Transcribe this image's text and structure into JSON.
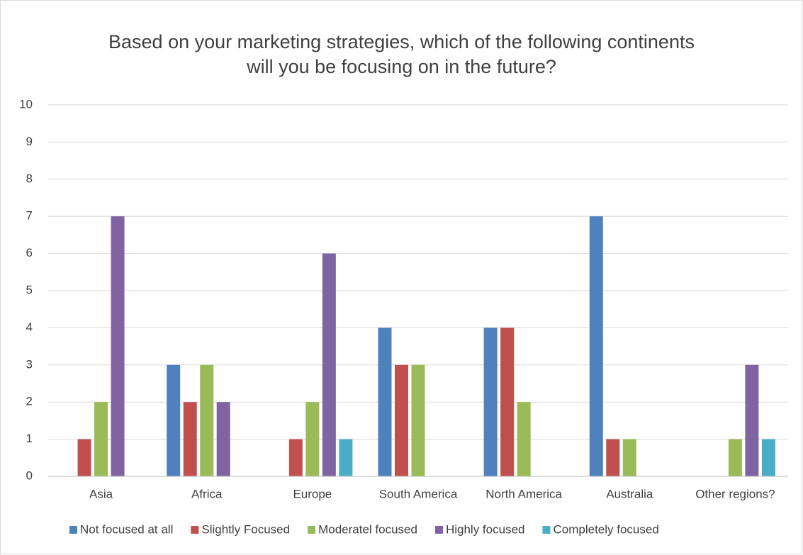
{
  "chart_data": {
    "type": "bar",
    "title": "Based on your marketing strategies, which of the following continents will you be focusing on in the future?",
    "categories": [
      "Asia",
      "Africa",
      "Europe",
      "South America",
      "North America",
      "Australia",
      "Other regions?"
    ],
    "series": [
      {
        "name": "Not focused at all",
        "color": "#4f81bd",
        "values": [
          0,
          3,
          0,
          4,
          4,
          7,
          0
        ]
      },
      {
        "name": "Slightly Focused",
        "color": "#c0504d",
        "values": [
          1,
          2,
          1,
          3,
          4,
          1,
          0
        ]
      },
      {
        "name": "Moderatel focused",
        "color": "#9bbb59",
        "values": [
          2,
          3,
          2,
          3,
          2,
          1,
          1
        ]
      },
      {
        "name": "Highly focused",
        "color": "#8064a2",
        "values": [
          7,
          2,
          6,
          0,
          0,
          0,
          3
        ]
      },
      {
        "name": "Completely focused",
        "color": "#4bacc6",
        "values": [
          0,
          0,
          1,
          0,
          0,
          0,
          1
        ]
      }
    ],
    "ylim": [
      0,
      10
    ],
    "yticks": [
      0,
      1,
      2,
      3,
      4,
      5,
      6,
      7,
      8,
      9,
      10
    ],
    "grid": true,
    "legend": "bottom"
  }
}
